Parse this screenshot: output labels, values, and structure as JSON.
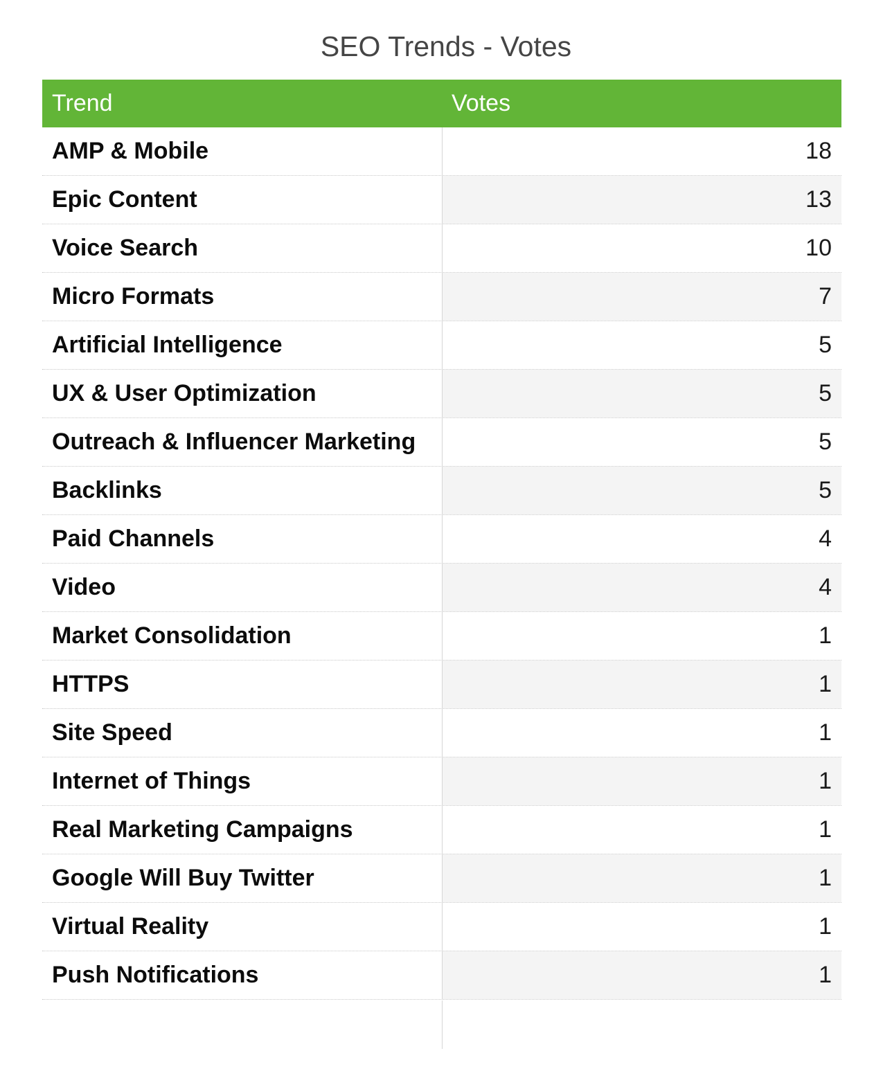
{
  "chart_data": {
    "type": "table",
    "title": "SEO Trends - Votes",
    "columns": [
      "Trend",
      "Votes"
    ],
    "rows": [
      {
        "trend": "AMP & Mobile",
        "votes": "18"
      },
      {
        "trend": "Epic Content",
        "votes": "13"
      },
      {
        "trend": "Voice Search",
        "votes": "10"
      },
      {
        "trend": "Micro Formats",
        "votes": "7"
      },
      {
        "trend": "Artificial Intelligence",
        "votes": "5"
      },
      {
        "trend": "UX & User Optimization",
        "votes": "5"
      },
      {
        "trend": "Outreach & Influencer Marketing",
        "votes": "5"
      },
      {
        "trend": "Backlinks",
        "votes": "5"
      },
      {
        "trend": "Paid Channels",
        "votes": "4"
      },
      {
        "trend": "Video",
        "votes": "4"
      },
      {
        "trend": "Market Consolidation",
        "votes": "1"
      },
      {
        "trend": "HTTPS",
        "votes": "1"
      },
      {
        "trend": "Site Speed",
        "votes": "1"
      },
      {
        "trend": "Internet of Things",
        "votes": "1"
      },
      {
        "trend": "Real Marketing Campaigns",
        "votes": "1"
      },
      {
        "trend": "Google Will Buy Twitter",
        "votes": "1"
      },
      {
        "trend": "Virtual Reality",
        "votes": "1"
      },
      {
        "trend": "Push Notifications",
        "votes": "1"
      }
    ],
    "colors": {
      "header_background": "#62b537",
      "header_text": "#ffffff",
      "alt_row_votes_background": "#f4f4f4"
    }
  }
}
